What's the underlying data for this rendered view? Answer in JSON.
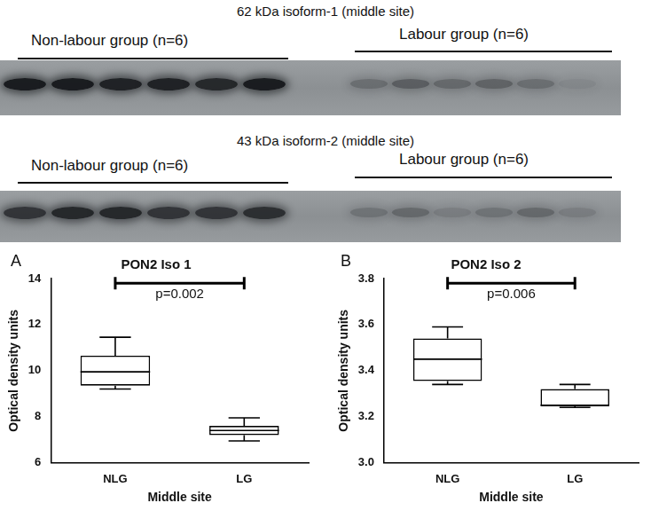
{
  "blots": [
    {
      "title": "62 kDa isoform-1 (middle site)",
      "groups": [
        "Non-labour group (n=6)",
        "Labour group (n=6)"
      ]
    },
    {
      "title": "43 kDa isoform-2 (middle site)",
      "groups": [
        "Non-labour group (n=6)",
        "Labour group (n=6)"
      ]
    }
  ],
  "chart_data": [
    {
      "type": "boxplot",
      "panel": "A",
      "title": "PON2 Iso 1",
      "categories": [
        "NLG",
        "LG"
      ],
      "boxes": [
        {
          "min": 9.2,
          "q1": 9.35,
          "median": 9.95,
          "q3": 10.65,
          "max": 11.45
        },
        {
          "min": 6.95,
          "q1": 7.2,
          "median": 7.4,
          "q3": 7.6,
          "max": 7.95
        }
      ],
      "color": "#000000",
      "x_label": "Middle site",
      "y_label": "Optical density units",
      "ylim": [
        6,
        14
      ],
      "yticks": [
        6,
        8,
        10,
        12,
        14
      ],
      "grid": false,
      "annotations": [
        {
          "text": "p=0.002",
          "y": 13.8,
          "from": "NLG",
          "to": "LG"
        }
      ]
    },
    {
      "type": "boxplot",
      "panel": "B",
      "title": "PON2 Iso 2",
      "categories": [
        "NLG",
        "LG"
      ],
      "boxes": [
        {
          "min": 3.34,
          "q1": 3.355,
          "median": 3.45,
          "q3": 3.54,
          "max": 3.59
        },
        {
          "min": 3.24,
          "q1": 3.245,
          "median": 3.25,
          "q3": 3.32,
          "max": 3.34
        }
      ],
      "color": "#000000",
      "x_label": "Middle site",
      "y_label": "Optical density units",
      "ylim": [
        3.0,
        3.8
      ],
      "yticks": [
        {
          "value": 3,
          "label": "3.0"
        },
        3.2,
        3.4,
        3.6,
        3.8
      ],
      "grid": false,
      "annotations": [
        {
          "text": "p=0.006",
          "y": 3.78,
          "from": "NLG",
          "to": "LG"
        }
      ]
    }
  ]
}
